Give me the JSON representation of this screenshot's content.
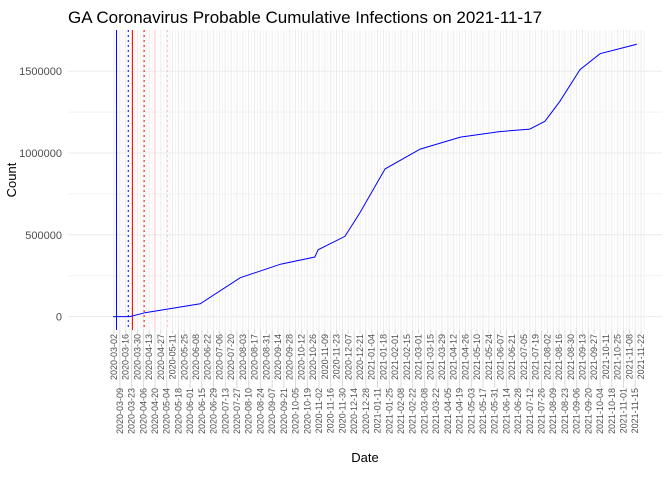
{
  "chart_data": {
    "type": "line",
    "title": "GA Coronavirus Probable Cumulative Infections on 2021-11-17",
    "xlabel": "Date",
    "ylabel": "Count",
    "xlim": [
      "2020-01-07",
      "2021-12-17"
    ],
    "ylim": [
      -82000,
      1752000
    ],
    "grid": true,
    "legend": "none",
    "y_ticks": [
      0,
      500000,
      1000000,
      1500000
    ],
    "x_ticks": {
      "start": "2020-03-02",
      "end": "2021-11-22",
      "step_days": 7
    },
    "series": [
      {
        "name": "Probable cumulative infections",
        "color": "#0000FF",
        "x": [
          "2020-03-01",
          "2020-03-21",
          "2020-04-08",
          "2020-06-13",
          "2020-07-31",
          "2020-09-17",
          "2020-10-28",
          "2020-11-01",
          "2020-12-03",
          "2020-12-21",
          "2021-01-20",
          "2021-03-03",
          "2021-04-20",
          "2021-06-06",
          "2021-07-12",
          "2021-07-30",
          "2021-08-17",
          "2021-09-10",
          "2021-10-04",
          "2021-11-17"
        ],
        "y": [
          0,
          0,
          24000,
          78000,
          238000,
          320000,
          364000,
          408000,
          490000,
          636000,
          903000,
          1024000,
          1097000,
          1131000,
          1146000,
          1194000,
          1316000,
          1510000,
          1607000,
          1665000
        ]
      }
    ],
    "vlines": [
      {
        "date": "2020-03-05",
        "color": "#0000FF",
        "style": "solid"
      },
      {
        "date": "2020-03-19",
        "color": "#0000FF",
        "style": "dotted"
      },
      {
        "date": "2020-03-24",
        "color": "#FF0000",
        "style": "solid"
      },
      {
        "date": "2020-04-07",
        "color": "#FF0000",
        "style": "dotted"
      },
      {
        "date": "2020-04-20",
        "color": "#FFC0CB",
        "style": "solid"
      },
      {
        "date": "2020-05-05",
        "color": "#FFC0CB",
        "style": "dotted"
      }
    ]
  }
}
